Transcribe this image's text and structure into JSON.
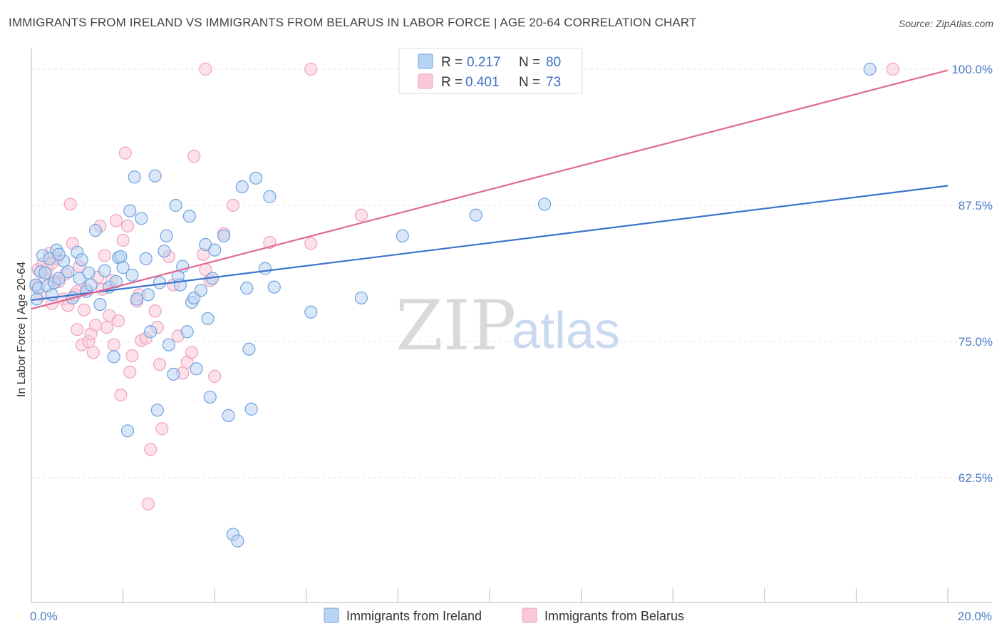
{
  "chart_data": {
    "type": "scatter",
    "title": "IMMIGRANTS FROM IRELAND VS IMMIGRANTS FROM BELARUS IN LABOR FORCE | AGE 20-64 CORRELATION CHART",
    "source": "Source: ZipAtlas.com",
    "xlabel": "",
    "ylabel": "In Labor Force | Age 20-64",
    "xlim": [
      0,
      20
    ],
    "ylim": [
      52,
      102
    ],
    "x_tick_labels": {
      "min": "0.0%",
      "max": "20.0%"
    },
    "y_ticks": [
      {
        "value": 62.5,
        "label": "62.5%"
      },
      {
        "value": 75.0,
        "label": "75.0%"
      },
      {
        "value": 87.5,
        "label": "87.5%"
      },
      {
        "value": 100.0,
        "label": "100.0%"
      }
    ],
    "grid": true,
    "legend": {
      "placement": "top-center",
      "r_label": "R =",
      "n_label": "N =",
      "entries": [
        {
          "r": "0.217",
          "n": "80"
        },
        {
          "r": "0.401",
          "n": "73"
        }
      ]
    },
    "watermark": {
      "zip": "ZIP",
      "atlas": "atlas"
    },
    "series": [
      {
        "name": "Immigrants from Ireland",
        "color": "#6fa3e0",
        "fill": "#b9d3f3",
        "line_color": "#3a74d0",
        "trend": {
          "x0": 0,
          "y0": 78.8,
          "x1": 20,
          "y1": 89.3
        },
        "points": [
          [
            0.1,
            80.2
          ],
          [
            0.15,
            79.9
          ],
          [
            0.2,
            81.4
          ],
          [
            0.25,
            82.9
          ],
          [
            0.3,
            81.3
          ],
          [
            0.35,
            80.1
          ],
          [
            0.4,
            82.6
          ],
          [
            0.45,
            79.3
          ],
          [
            0.5,
            80.4
          ],
          [
            0.55,
            83.4
          ],
          [
            0.6,
            80.8
          ],
          [
            0.7,
            82.4
          ],
          [
            0.8,
            81.4
          ],
          [
            0.9,
            79.0
          ],
          [
            1.0,
            83.2
          ],
          [
            1.05,
            80.8
          ],
          [
            1.1,
            82.5
          ],
          [
            1.2,
            79.6
          ],
          [
            1.3,
            80.2
          ],
          [
            1.4,
            85.2
          ],
          [
            1.5,
            78.4
          ],
          [
            1.6,
            81.5
          ],
          [
            1.7,
            80.0
          ],
          [
            1.8,
            73.6
          ],
          [
            1.9,
            82.7
          ],
          [
            1.95,
            82.8
          ],
          [
            2.0,
            81.8
          ],
          [
            2.1,
            66.8
          ],
          [
            2.15,
            87.0
          ],
          [
            2.2,
            81.1
          ],
          [
            2.25,
            90.1
          ],
          [
            2.3,
            78.9
          ],
          [
            2.4,
            86.3
          ],
          [
            2.5,
            82.6
          ],
          [
            2.6,
            75.9
          ],
          [
            2.7,
            90.2
          ],
          [
            2.75,
            68.7
          ],
          [
            2.8,
            80.4
          ],
          [
            2.9,
            83.3
          ],
          [
            2.95,
            84.7
          ],
          [
            3.0,
            74.7
          ],
          [
            3.1,
            72.0
          ],
          [
            3.15,
            87.5
          ],
          [
            3.2,
            81.0
          ],
          [
            3.3,
            81.9
          ],
          [
            3.4,
            75.9
          ],
          [
            3.45,
            86.5
          ],
          [
            3.5,
            78.6
          ],
          [
            3.55,
            79.0
          ],
          [
            3.6,
            72.5
          ],
          [
            3.7,
            79.7
          ],
          [
            3.8,
            83.9
          ],
          [
            3.85,
            77.1
          ],
          [
            3.9,
            69.9
          ],
          [
            3.95,
            80.8
          ],
          [
            4.0,
            83.4
          ],
          [
            4.2,
            84.7
          ],
          [
            4.3,
            68.2
          ],
          [
            4.4,
            57.3
          ],
          [
            4.5,
            56.7
          ],
          [
            4.6,
            89.2
          ],
          [
            4.7,
            79.9
          ],
          [
            4.75,
            74.3
          ],
          [
            4.8,
            68.8
          ],
          [
            4.9,
            90.0
          ],
          [
            5.1,
            81.7
          ],
          [
            5.2,
            88.3
          ],
          [
            5.3,
            80.0
          ],
          [
            6.1,
            77.7
          ],
          [
            7.2,
            79.0
          ],
          [
            8.1,
            84.7
          ],
          [
            9.7,
            86.6
          ],
          [
            11.2,
            87.6
          ],
          [
            18.3,
            100.0
          ],
          [
            0.12,
            78.9
          ],
          [
            0.6,
            83.0
          ],
          [
            1.25,
            81.3
          ],
          [
            1.85,
            80.5
          ],
          [
            2.55,
            79.3
          ],
          [
            3.25,
            80.2
          ]
        ]
      },
      {
        "name": "Immigrants from Belarus",
        "color": "#f0a3bd",
        "fill": "#f9c9d8",
        "line_color": "#e06a93",
        "trend": {
          "x0": 0,
          "y0": 78.0,
          "x1": 20,
          "y1": 99.9
        },
        "points": [
          [
            0.1,
            80.1
          ],
          [
            0.15,
            81.6
          ],
          [
            0.2,
            79.3
          ],
          [
            0.25,
            82.1
          ],
          [
            0.3,
            80.8
          ],
          [
            0.35,
            81.7
          ],
          [
            0.4,
            83.1
          ],
          [
            0.45,
            78.5
          ],
          [
            0.5,
            80.6
          ],
          [
            0.55,
            82.6
          ],
          [
            0.6,
            80.5
          ],
          [
            0.7,
            78.9
          ],
          [
            0.75,
            81.2
          ],
          [
            0.8,
            78.3
          ],
          [
            0.85,
            87.6
          ],
          [
            0.9,
            84.0
          ],
          [
            0.95,
            79.3
          ],
          [
            1.0,
            76.1
          ],
          [
            1.05,
            81.9
          ],
          [
            1.1,
            74.7
          ],
          [
            1.15,
            77.9
          ],
          [
            1.2,
            79.8
          ],
          [
            1.25,
            75.0
          ],
          [
            1.3,
            75.7
          ],
          [
            1.35,
            74.0
          ],
          [
            1.4,
            76.5
          ],
          [
            1.45,
            80.9
          ],
          [
            1.5,
            85.6
          ],
          [
            1.55,
            79.8
          ],
          [
            1.6,
            82.9
          ],
          [
            1.65,
            76.3
          ],
          [
            1.7,
            77.4
          ],
          [
            1.75,
            80.6
          ],
          [
            1.8,
            74.7
          ],
          [
            1.85,
            86.1
          ],
          [
            1.9,
            76.9
          ],
          [
            1.95,
            70.1
          ],
          [
            2.0,
            84.3
          ],
          [
            2.05,
            92.3
          ],
          [
            2.1,
            85.6
          ],
          [
            2.15,
            72.2
          ],
          [
            2.2,
            73.7
          ],
          [
            2.3,
            78.7
          ],
          [
            2.35,
            79.3
          ],
          [
            2.4,
            75.1
          ],
          [
            2.5,
            75.3
          ],
          [
            2.55,
            60.1
          ],
          [
            2.6,
            65.1
          ],
          [
            2.7,
            77.8
          ],
          [
            2.75,
            76.3
          ],
          [
            2.8,
            72.9
          ],
          [
            2.85,
            67.0
          ],
          [
            3.0,
            82.8
          ],
          [
            3.1,
            80.2
          ],
          [
            3.2,
            75.5
          ],
          [
            3.3,
            72.1
          ],
          [
            3.4,
            73.1
          ],
          [
            3.5,
            74.0
          ],
          [
            3.55,
            92.0
          ],
          [
            3.75,
            83.0
          ],
          [
            3.8,
            81.6
          ],
          [
            3.9,
            80.6
          ],
          [
            4.0,
            71.8
          ],
          [
            4.2,
            84.9
          ],
          [
            4.4,
            87.5
          ],
          [
            5.2,
            84.1
          ],
          [
            6.1,
            84.0
          ],
          [
            7.2,
            86.6
          ],
          [
            3.8,
            100.0
          ],
          [
            6.1,
            100.0
          ],
          [
            18.8,
            100.0
          ],
          [
            0.45,
            82.2
          ],
          [
            1.0,
            79.6
          ]
        ]
      }
    ]
  }
}
